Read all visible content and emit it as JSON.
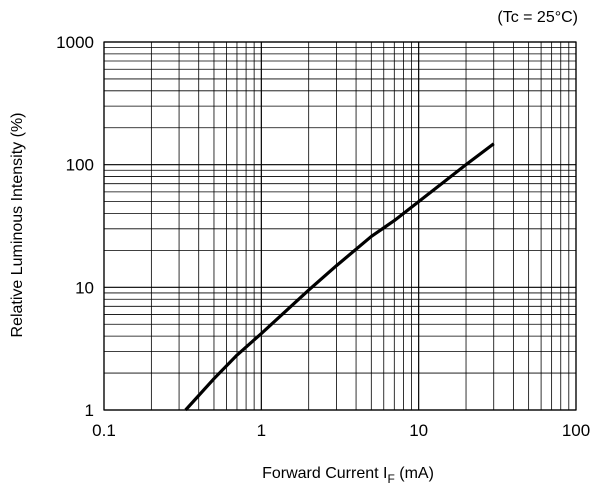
{
  "chart_data": {
    "type": "line",
    "xscale": "log",
    "yscale": "log",
    "xlim": [
      0.1,
      100
    ],
    "ylim": [
      1,
      1000
    ],
    "grid": true,
    "annotation": "(Tc = 25°C)",
    "xlabel_main": "Forward Current I",
    "xlabel_sub": "F",
    "xlabel_unit": " (mA)",
    "ylabel": "Relative Luminous Intensity (%)",
    "xticks": [
      "0.1",
      "1",
      "10",
      "100"
    ],
    "yticks": [
      "1",
      "10",
      "100",
      "1000"
    ],
    "series": [
      {
        "x": [
          0.33,
          0.5,
          0.7,
          1,
          2,
          3,
          5,
          7,
          10,
          15,
          20,
          30
        ],
        "y": [
          1,
          1.8,
          2.8,
          4.2,
          9.5,
          15,
          26,
          35,
          50,
          75,
          100,
          148
        ]
      }
    ],
    "line_color": "#000000"
  }
}
